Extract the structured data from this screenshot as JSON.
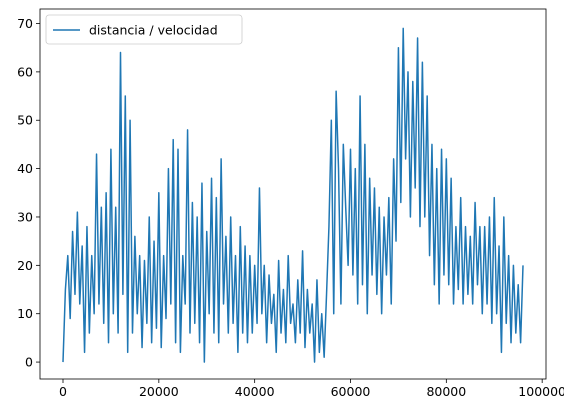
{
  "chart_data": {
    "type": "line",
    "title": "",
    "xlabel": "",
    "ylabel": "",
    "xlim": [
      -4800,
      100800
    ],
    "ylim": [
      -3.5,
      73
    ],
    "xticks": [
      0,
      20000,
      40000,
      60000,
      80000,
      100000
    ],
    "xtick_labels": [
      "0",
      "20000",
      "40000",
      "60000",
      "80000",
      "100000"
    ],
    "yticks": [
      0,
      10,
      20,
      30,
      40,
      50,
      60,
      70
    ],
    "ytick_labels": [
      "0",
      "10",
      "20",
      "30",
      "40",
      "50",
      "60",
      "70"
    ],
    "grid": false,
    "legend": {
      "placement": "upper-left"
    },
    "series": [
      {
        "name": "distancia / velocidad",
        "color": "#1f77b4",
        "x": [
          0,
          500,
          1000,
          1500,
          2000,
          2500,
          3000,
          3500,
          4000,
          4500,
          5000,
          5500,
          6000,
          6500,
          7000,
          7500,
          8000,
          8500,
          9000,
          9500,
          10000,
          10500,
          11000,
          11500,
          12000,
          12500,
          13000,
          13500,
          14000,
          14500,
          15000,
          15500,
          16000,
          16500,
          17000,
          17500,
          18000,
          18500,
          19000,
          19500,
          20000,
          20500,
          21000,
          21500,
          22000,
          22500,
          23000,
          23500,
          24000,
          24500,
          25000,
          25500,
          26000,
          26500,
          27000,
          27500,
          28000,
          28500,
          29000,
          29500,
          30000,
          30500,
          31000,
          31500,
          32000,
          32500,
          33000,
          33500,
          34000,
          34500,
          35000,
          35500,
          36000,
          36500,
          37000,
          37500,
          38000,
          38500,
          39000,
          39500,
          40000,
          40500,
          41000,
          41500,
          42000,
          42500,
          43000,
          43500,
          44000,
          44500,
          45000,
          45500,
          46000,
          46500,
          47000,
          47500,
          48000,
          48500,
          49000,
          49500,
          50000,
          50500,
          51000,
          51500,
          52000,
          52500,
          53000,
          53500,
          54000,
          54500,
          55000,
          55500,
          56000,
          56500,
          57000,
          57500,
          58000,
          58500,
          59000,
          59500,
          60000,
          60500,
          61000,
          61500,
          62000,
          62500,
          63000,
          63500,
          64000,
          64500,
          65000,
          65500,
          66000,
          66500,
          67000,
          67500,
          68000,
          68500,
          69000,
          69500,
          70000,
          70500,
          71000,
          71500,
          72000,
          72500,
          73000,
          73500,
          74000,
          74500,
          75000,
          75500,
          76000,
          76500,
          77000,
          77500,
          78000,
          78500,
          79000,
          79500,
          80000,
          80500,
          81000,
          81500,
          82000,
          82500,
          83000,
          83500,
          84000,
          84500,
          85000,
          85500,
          86000,
          86500,
          87000,
          87500,
          88000,
          88500,
          89000,
          89500,
          90000,
          90500,
          91000,
          91500,
          92000,
          92500,
          93000,
          93500,
          94000,
          94500,
          95000,
          95500,
          96000
        ],
        "values": [
          0,
          15,
          22,
          9,
          27,
          14,
          31,
          12,
          24,
          2,
          28,
          6,
          22,
          10,
          43,
          12,
          32,
          8,
          35,
          4,
          44,
          10,
          32,
          6,
          64,
          14,
          55,
          2,
          50,
          6,
          26,
          10,
          22,
          3,
          21,
          8,
          30,
          4,
          25,
          7,
          35,
          3,
          22,
          9,
          40,
          12,
          46,
          4,
          44,
          2,
          22,
          12,
          48,
          6,
          33,
          8,
          30,
          4,
          37,
          0,
          27,
          10,
          38,
          6,
          34,
          4,
          42,
          12,
          26,
          6,
          30,
          8,
          22,
          2,
          28,
          6,
          24,
          4,
          22,
          6,
          20,
          8,
          36,
          10,
          20,
          4,
          18,
          8,
          14,
          2,
          21,
          6,
          15,
          4,
          22,
          8,
          12,
          4,
          17,
          6,
          23,
          3,
          15,
          6,
          12,
          0,
          17,
          2,
          10,
          1,
          14,
          28,
          50,
          10,
          56,
          40,
          12,
          45,
          32,
          20,
          44,
          18,
          40,
          12,
          55,
          16,
          45,
          10,
          38,
          18,
          36,
          14,
          32,
          10,
          30,
          18,
          34,
          12,
          42,
          25,
          65,
          33,
          69,
          42,
          60,
          30,
          58,
          36,
          67,
          28,
          62,
          30,
          55,
          22,
          45,
          16,
          40,
          12,
          44,
          18,
          42,
          16,
          38,
          12,
          28,
          15,
          34,
          12,
          28,
          14,
          26,
          12,
          33,
          16,
          28,
          10,
          28,
          12,
          30,
          8,
          34,
          10,
          24,
          2,
          30,
          8,
          22,
          4,
          20,
          6,
          16,
          4,
          20
        ]
      }
    ]
  }
}
